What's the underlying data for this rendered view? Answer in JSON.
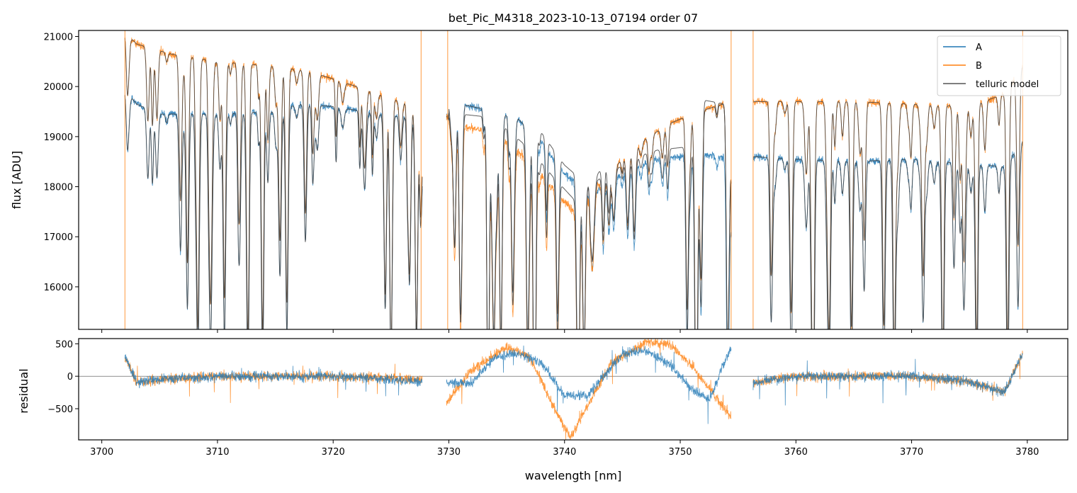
{
  "chart_data": [
    {
      "type": "line",
      "panel": "top",
      "title": "bet_Pic_M4318_2023-10-13_07194  order 07",
      "xlabel": "",
      "ylabel": "flux [ADU]",
      "xlim": [
        3698,
        3783.5
      ],
      "ylim": [
        15150,
        21120
      ],
      "yticks": [
        16000,
        17000,
        18000,
        19000,
        20000,
        21000
      ],
      "ytick_labels": [
        "16000",
        "17000",
        "18000",
        "19000",
        "20000",
        "21000"
      ],
      "xticks": [
        3700,
        3710,
        3720,
        3730,
        3740,
        3750,
        3760,
        3770,
        3780
      ],
      "legend": {
        "position": "top-right",
        "entries": [
          "A",
          "B",
          "telluric model"
        ]
      },
      "segments": [
        [
          3702.0,
          3727.7
        ],
        [
          3729.8,
          3754.4
        ],
        [
          3756.3,
          3779.6
        ]
      ],
      "series": [
        {
          "name": "A",
          "color": "#1f77b4",
          "continuum_x": [
            3702,
            3703,
            3705,
            3710,
            3715,
            3717,
            3720,
            3724,
            3727.7,
            3729.8,
            3731,
            3733,
            3736,
            3738,
            3740,
            3742,
            3744,
            3746,
            3748,
            3750,
            3752,
            3754.4,
            3756.3,
            3760,
            3765,
            3770,
            3775,
            3778,
            3779.6
          ],
          "continuum_y": [
            19950,
            19650,
            19450,
            19450,
            19500,
            19650,
            19600,
            19450,
            19350,
            19400,
            19650,
            19550,
            19350,
            18900,
            18250,
            17850,
            18100,
            18400,
            18550,
            18600,
            18650,
            18550,
            18600,
            18550,
            18500,
            18550,
            18450,
            18400,
            18900
          ]
        },
        {
          "name": "B",
          "color": "#ff7f0e",
          "continuum_x": [
            3702,
            3703,
            3706,
            3710,
            3715,
            3718,
            3722,
            3727.7,
            3729.8,
            3731,
            3733,
            3735,
            3737,
            3739,
            3741,
            3743,
            3745,
            3747,
            3749,
            3751,
            3753,
            3754.4,
            3756.3,
            3760,
            3765,
            3770,
            3775,
            3778,
            3779.6
          ],
          "continuum_y": [
            21100,
            20850,
            20650,
            20500,
            20400,
            20300,
            20000,
            19550,
            19400,
            19200,
            19150,
            18900,
            18500,
            17950,
            17450,
            18050,
            18550,
            18950,
            19250,
            19450,
            19600,
            19700,
            19700,
            19700,
            19700,
            19650,
            19600,
            19850,
            20400
          ]
        },
        {
          "name": "telluric model",
          "color": "#555555"
        }
      ]
    },
    {
      "type": "line",
      "panel": "bottom",
      "xlabel": "wavelength [nm]",
      "ylabel": "residual",
      "xlim": [
        3698,
        3783.5
      ],
      "ylim": [
        -980,
        580
      ],
      "yticks": [
        -500,
        0,
        500
      ],
      "ytick_labels": [
        "−500",
        "0",
        "500"
      ],
      "xticks": [
        3700,
        3710,
        3720,
        3730,
        3740,
        3750,
        3760,
        3770,
        3780
      ],
      "xtick_labels": [
        "3700",
        "3710",
        "3720",
        "3730",
        "3740",
        "3750",
        "3760",
        "3770",
        "3780"
      ],
      "series": [
        {
          "name": "A",
          "color": "#1f77b4",
          "trend_x": [
            3702,
            3703,
            3705,
            3710,
            3720,
            3727.7,
            3729.8,
            3732,
            3734,
            3736,
            3738,
            3740,
            3742,
            3745,
            3747,
            3749,
            3751,
            3752.5,
            3754.4,
            3756.3,
            3760,
            3765,
            3770,
            3775,
            3778,
            3779.6
          ],
          "trend_y": [
            300,
            -100,
            -50,
            0,
            0,
            -80,
            -100,
            -100,
            300,
            350,
            200,
            -300,
            -300,
            350,
            400,
            200,
            -200,
            -350,
            450,
            -100,
            0,
            0,
            0,
            -80,
            -250,
            350
          ]
        },
        {
          "name": "B",
          "color": "#ff7f0e",
          "trend_x": [
            3702,
            3703,
            3705,
            3710,
            3720,
            3727.7,
            3729.8,
            3732,
            3735,
            3737,
            3739,
            3740.5,
            3742,
            3744,
            3747,
            3749,
            3751,
            3753,
            3754.4,
            3756.3,
            3760,
            3765,
            3770,
            3775,
            3778,
            3779.6
          ],
          "trend_y": [
            300,
            -100,
            -50,
            0,
            0,
            -50,
            -400,
            100,
            450,
            300,
            -450,
            -950,
            -450,
            200,
            520,
            500,
            150,
            -300,
            -650,
            -100,
            0,
            0,
            0,
            -80,
            -250,
            350
          ]
        }
      ]
    }
  ]
}
